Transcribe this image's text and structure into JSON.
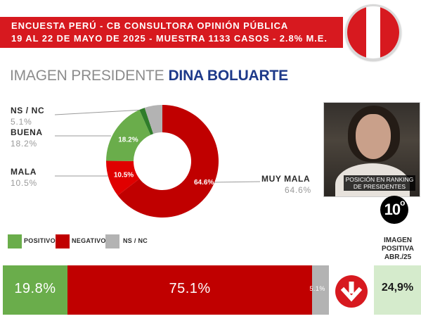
{
  "header": {
    "line1": "ENCUESTA PERÚ - CB CONSULTORA OPINIÓN PÚBLICA",
    "line2": "19 AL 22 DE MAYO DE 2025 - MUESTRA 1133 CASOS - 2.8% M.E."
  },
  "title": {
    "prefix": "IMAGEN PRESIDENTE",
    "name": "DINA BOLUARTE"
  },
  "colors": {
    "red": "#d7191f",
    "dark_red": "#c00000",
    "green": "#6aad4b",
    "dark_green": "#2f7d2a",
    "gray": "#b3b3b3",
    "navy": "#1e3a8a"
  },
  "chart_data": {
    "type": "pie",
    "style": "donut",
    "slices": [
      {
        "label": "MUY MALA",
        "value": 64.6,
        "display": "64.6%",
        "color": "#c00000"
      },
      {
        "label": "MALA",
        "value": 10.5,
        "display": "10.5%",
        "color": "#e00000"
      },
      {
        "label": "BUENA",
        "value": 18.2,
        "display": "18.2%",
        "color": "#6aad4b"
      },
      {
        "label": "",
        "value": 1.6,
        "display": "",
        "color": "#2f7d2a"
      },
      {
        "label": "NS / NC",
        "value": 5.1,
        "display": "",
        "color": "#b3b3b3"
      }
    ],
    "legend": [
      {
        "label": "NS / NC",
        "value": "5.1%"
      },
      {
        "label": "BUENA",
        "value": "18.2%"
      },
      {
        "label": "MALA",
        "value": "10.5%"
      },
      {
        "label": "MUY MALA",
        "value": "64.6%"
      }
    ]
  },
  "summary": {
    "legend": [
      {
        "label": "POSITIVO",
        "color": "#6aad4b"
      },
      {
        "label": "NEGATIVO",
        "color": "#c00000"
      },
      {
        "label": "NS / NC",
        "color": "#b3b3b3"
      }
    ],
    "bar": [
      {
        "label": "19.8%",
        "value": 19.8,
        "color": "#6aad4b"
      },
      {
        "label": "75.1%",
        "value": 75.1,
        "color": "#c00000"
      },
      {
        "label": "5.1%",
        "value": 5.1,
        "color": "#b3b3b3"
      }
    ]
  },
  "photo": {
    "caption_line1": "POSICIÓN EN RANKING",
    "caption_line2": "DE PRESIDENTES"
  },
  "ranking": {
    "number": "10",
    "suffix": "o"
  },
  "trend": {
    "icon": "arrow-down-icon",
    "title_line1": "IMAGEN",
    "title_line2": "POSITIVA",
    "title_line3": "ABR./25",
    "value": "24,9%"
  }
}
